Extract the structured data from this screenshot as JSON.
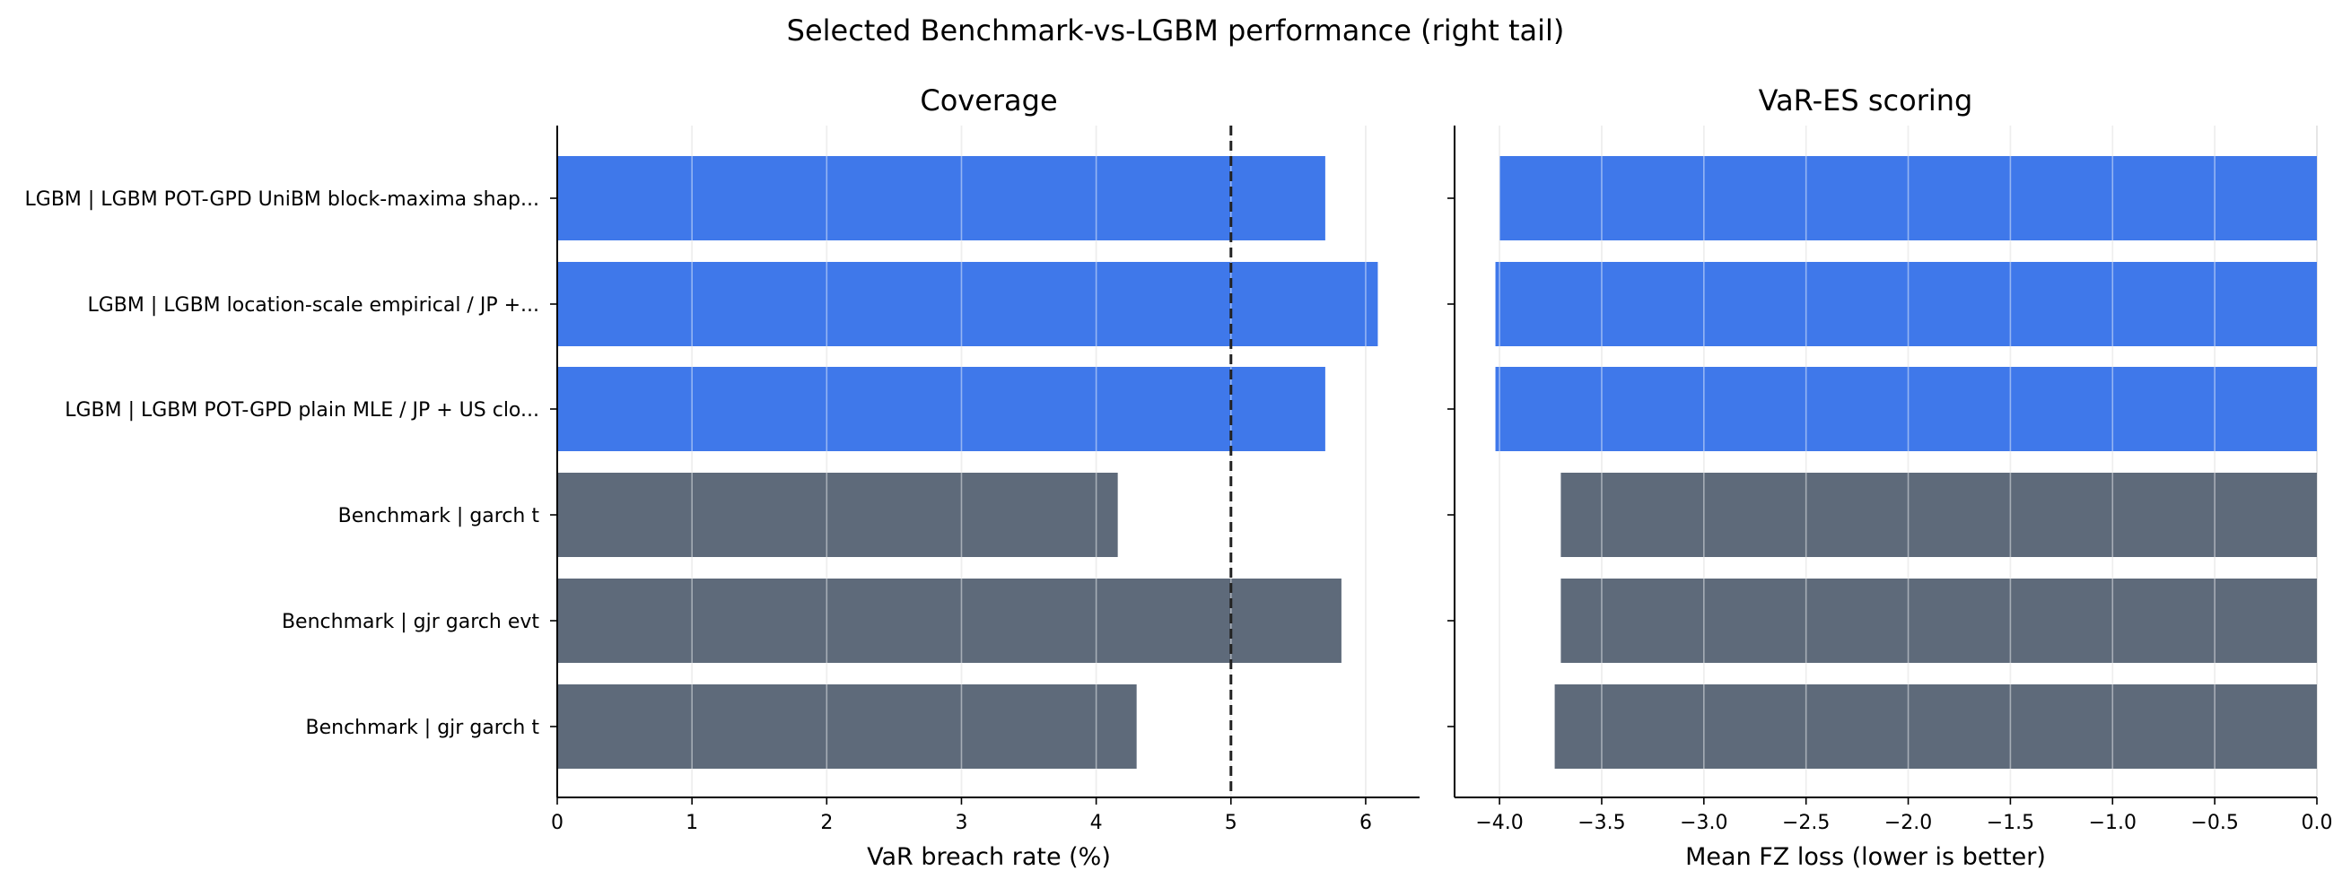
{
  "suptitle": "Selected Benchmark-vs-LGBM performance (right tail)",
  "chart_data": [
    {
      "type": "bar",
      "orientation": "horizontal",
      "title": "Coverage",
      "xlabel": "VaR breach rate (%)",
      "ylabel": "",
      "categories": [
        "LGBM | LGBM POT-GPD UniBM block-maxima shap...",
        "LGBM | LGBM location-scale empirical / JP +...",
        "LGBM | LGBM POT-GPD plain MLE / JP + US clo...",
        "Benchmark | garch t",
        "Benchmark | gjr garch evt",
        "Benchmark | gjr garch t"
      ],
      "values": [
        5.7,
        6.09,
        5.7,
        4.16,
        5.82,
        4.3
      ],
      "groups": [
        "LGBM",
        "LGBM",
        "LGBM",
        "Benchmark",
        "Benchmark",
        "Benchmark"
      ],
      "xlim": [
        0,
        6.4
      ],
      "xticks": [
        0,
        1,
        2,
        3,
        4,
        5,
        6
      ],
      "xtick_labels": [
        "0",
        "1",
        "2",
        "3",
        "4",
        "5",
        "6"
      ],
      "reference_line": 5,
      "grid": "vertical"
    },
    {
      "type": "bar",
      "orientation": "horizontal",
      "title": "VaR-ES scoring",
      "xlabel": "Mean FZ loss (lower is better)",
      "ylabel": "",
      "categories": [
        "LGBM | LGBM POT-GPD UniBM block-maxima shap...",
        "LGBM | LGBM location-scale empirical / JP +...",
        "LGBM | LGBM POT-GPD plain MLE / JP + US clo...",
        "Benchmark | garch t",
        "Benchmark | gjr garch evt",
        "Benchmark | gjr garch t"
      ],
      "values": [
        -4.0,
        -4.02,
        -4.02,
        -3.7,
        -3.7,
        -3.73
      ],
      "groups": [
        "LGBM",
        "LGBM",
        "LGBM",
        "Benchmark",
        "Benchmark",
        "Benchmark"
      ],
      "xlim": [
        -4.22,
        0
      ],
      "xticks": [
        -4.0,
        -3.5,
        -3.0,
        -2.5,
        -2.0,
        -1.5,
        -1.0,
        -0.5,
        0.0
      ],
      "xtick_labels": [
        "−4.0",
        "−3.5",
        "−3.0",
        "−2.5",
        "−2.0",
        "−1.5",
        "−1.0",
        "−0.5",
        "0.0"
      ],
      "grid": "vertical"
    }
  ],
  "colors": {
    "LGBM": "#3f78ea",
    "Benchmark": "#5e6a7a",
    "grid": "#e0e0e0",
    "axis": "#000000",
    "reference": "#222222"
  }
}
